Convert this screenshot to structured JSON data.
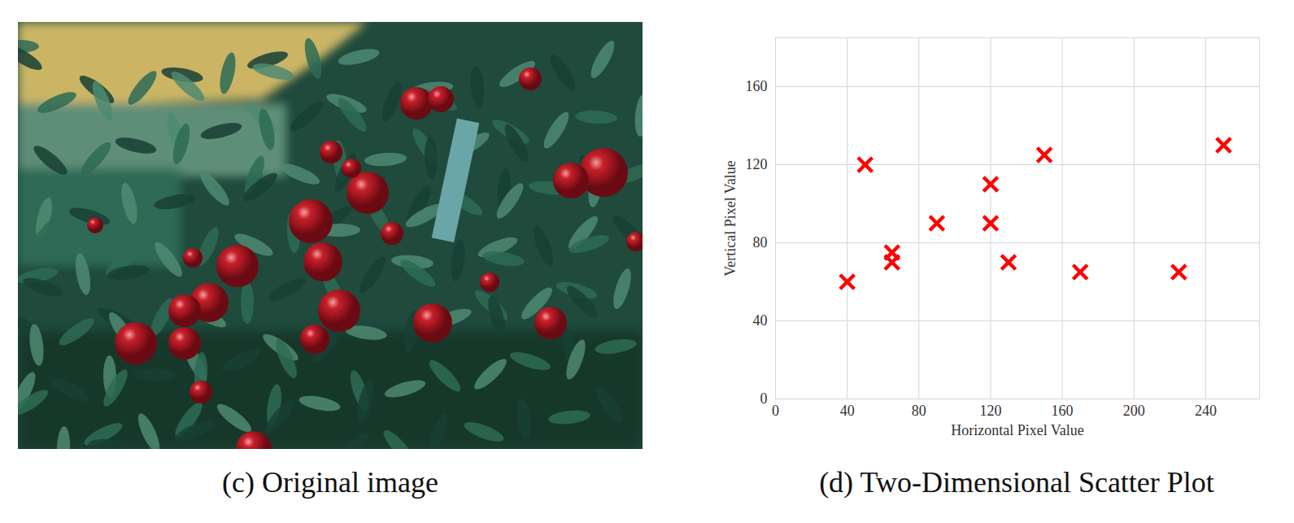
{
  "image": {
    "caption": "(c) Original image"
  },
  "chart_data": {
    "type": "scatter",
    "caption": "(d) Two-Dimensional Scatter Plot",
    "x_label": "Horizontal Pixel Value",
    "y_label": "Vertical Pixel Value",
    "x": [
      40,
      50,
      65,
      65,
      90,
      120,
      120,
      130,
      150,
      170,
      225,
      250
    ],
    "values": [
      60,
      120,
      75,
      70,
      90,
      110,
      90,
      70,
      125,
      65,
      65,
      130
    ],
    "color": "#ff0000",
    "marker": "x",
    "xlim": [
      0,
      270
    ],
    "ylim": [
      0,
      185
    ],
    "xticks": [
      0,
      40,
      80,
      120,
      160,
      200,
      240
    ],
    "yticks": [
      0,
      40,
      80,
      120,
      160
    ],
    "grid": true
  }
}
